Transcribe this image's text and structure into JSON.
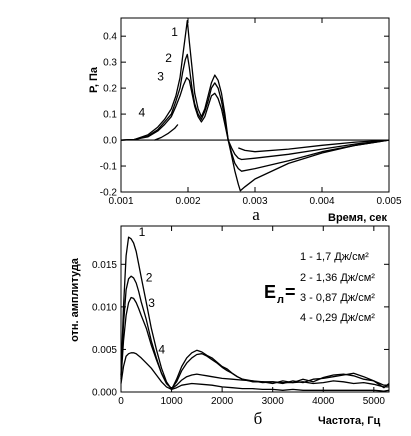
{
  "chart_data": [
    {
      "type": "line",
      "panel_label": "а",
      "xlabel": "Время, сек",
      "ylabel": "P, Па",
      "xlim": [
        0.001,
        0.005
      ],
      "ylim": [
        -0.2,
        0.47
      ],
      "xticks": [
        "0.001",
        "0.002",
        "0.003",
        "0.004",
        "0.005"
      ],
      "yticks": [
        "-0.2",
        "-0.1",
        "0.0",
        "0.1",
        "0.2",
        "0.3",
        "0.4"
      ],
      "grid": false,
      "series": [
        {
          "name": "1",
          "x": [
            0.001,
            0.0012,
            0.0014,
            0.00155,
            0.00165,
            0.00175,
            0.00182,
            0.00188,
            0.00192,
            0.00196,
            0.00199,
            0.00202,
            0.00206,
            0.0021,
            0.00215,
            0.0022,
            0.00225,
            0.0023,
            0.00235,
            0.0024,
            0.00245,
            0.0025,
            0.00255,
            0.0026,
            0.00265,
            0.0027,
            0.00275,
            0.00278,
            0.00285,
            0.003,
            0.0035,
            0.004,
            0.0045,
            0.005
          ],
          "y": [
            0.0,
            0.002,
            0.02,
            0.05,
            0.08,
            0.12,
            0.17,
            0.24,
            0.32,
            0.4,
            0.46,
            0.38,
            0.28,
            0.18,
            0.12,
            0.09,
            0.12,
            0.17,
            0.22,
            0.25,
            0.23,
            0.18,
            0.1,
            0.0,
            -0.06,
            -0.12,
            -0.17,
            -0.195,
            -0.18,
            -0.15,
            -0.09,
            -0.05,
            -0.02,
            0.0
          ]
        },
        {
          "name": "2",
          "x": [
            0.001,
            0.0012,
            0.0014,
            0.00155,
            0.00165,
            0.00175,
            0.00182,
            0.00188,
            0.00192,
            0.00196,
            0.00199,
            0.00202,
            0.00206,
            0.0021,
            0.00215,
            0.0022,
            0.00225,
            0.0023,
            0.00235,
            0.0024,
            0.00245,
            0.0025,
            0.00255,
            0.0026,
            0.00265,
            0.0027,
            0.00275,
            0.0028,
            0.003,
            0.0035,
            0.004,
            0.0045,
            0.005
          ],
          "y": [
            0.0,
            0.002,
            0.015,
            0.04,
            0.07,
            0.1,
            0.15,
            0.2,
            0.26,
            0.31,
            0.33,
            0.28,
            0.2,
            0.14,
            0.1,
            0.08,
            0.11,
            0.15,
            0.2,
            0.22,
            0.2,
            0.15,
            0.08,
            0.0,
            -0.05,
            -0.09,
            -0.11,
            -0.12,
            -0.11,
            -0.08,
            -0.045,
            -0.02,
            0.0
          ]
        },
        {
          "name": "3",
          "x": [
            0.001,
            0.0012,
            0.0014,
            0.00155,
            0.00165,
            0.00175,
            0.00182,
            0.00188,
            0.00193,
            0.00198,
            0.00202,
            0.00206,
            0.0021,
            0.00215,
            0.0022,
            0.00225,
            0.0023,
            0.00235,
            0.0024,
            0.00245,
            0.0025,
            0.00255,
            0.0026,
            0.00265,
            0.0027,
            0.00275,
            0.0028,
            0.003,
            0.0035,
            0.004,
            0.0045,
            0.005
          ],
          "y": [
            0.0,
            0.002,
            0.012,
            0.035,
            0.06,
            0.09,
            0.13,
            0.17,
            0.21,
            0.24,
            0.23,
            0.18,
            0.13,
            0.09,
            0.07,
            0.09,
            0.13,
            0.17,
            0.18,
            0.16,
            0.12,
            0.06,
            0.0,
            -0.03,
            -0.055,
            -0.07,
            -0.075,
            -0.07,
            -0.055,
            -0.035,
            -0.015,
            0.0
          ]
        },
        {
          "name": "4",
          "x": [
            0.0015,
            0.0016,
            0.0017,
            0.0018,
            0.00185
          ],
          "y": [
            0.0,
            0.01,
            0.025,
            0.045,
            0.06
          ]
        },
        {
          "name": "",
          "x": [
            0.00275,
            0.00285,
            0.003,
            0.0035,
            0.004,
            0.0045,
            0.005
          ],
          "y": [
            -0.03,
            -0.04,
            -0.045,
            -0.035,
            -0.02,
            -0.008,
            0.0
          ]
        }
      ]
    },
    {
      "type": "line",
      "panel_label": "б",
      "xlabel": "Частота, Гц",
      "ylabel": "отн. амплитуда",
      "xlim": [
        0,
        5300
      ],
      "ylim": [
        0,
        0.0195
      ],
      "xticks": [
        "0",
        "1000",
        "2000",
        "3000",
        "4000",
        "5000"
      ],
      "yticks": [
        "0.000",
        "0.005",
        "0.010",
        "0.015"
      ],
      "grid": false,
      "legend": {
        "symbol_main": "Е",
        "symbol_sub": "л",
        "symbol_eq": "=",
        "entries": [
          "1 - 1,7 Дж/см²",
          "2 - 1,36 Дж/см²",
          "3 - 0,87 Дж/см²",
          "4 - 0,29 Дж/см²"
        ]
      },
      "series": [
        {
          "name": "1",
          "x": [
            0,
            50,
            100,
            150,
            200,
            250,
            300,
            350,
            400,
            500,
            600,
            700,
            800,
            900,
            1000,
            1100,
            1200,
            1300,
            1400,
            1500,
            1600,
            1700,
            1800,
            1900,
            2000,
            2100,
            2200,
            2300,
            2400,
            2600,
            2800,
            3000,
            3200,
            3400,
            3600,
            3800,
            4000,
            4200,
            4400,
            4600,
            4800,
            5000,
            5200,
            5300
          ],
          "y": [
            0.002,
            0.01,
            0.016,
            0.0182,
            0.018,
            0.0175,
            0.0165,
            0.015,
            0.0135,
            0.0105,
            0.0075,
            0.005,
            0.0028,
            0.0012,
            0.0003,
            0.0015,
            0.003,
            0.004,
            0.0046,
            0.0049,
            0.0047,
            0.0043,
            0.004,
            0.0035,
            0.003,
            0.0027,
            0.0022,
            0.0018,
            0.0015,
            0.0012,
            0.0012,
            0.001,
            0.0013,
            0.0011,
            0.0015,
            0.0012,
            0.0017,
            0.002,
            0.0021,
            0.0019,
            0.0015,
            0.0013,
            0.0005,
            0.001
          ]
        },
        {
          "name": "2",
          "x": [
            0,
            50,
            100,
            150,
            200,
            250,
            300,
            350,
            400,
            500,
            600,
            700,
            800,
            900,
            1000,
            1100,
            1200,
            1300,
            1400,
            1500,
            1600,
            1700,
            1800,
            1900,
            2000,
            2100,
            2200,
            2300,
            2400,
            2600,
            2800,
            3000,
            3200,
            3400,
            3600,
            3800,
            4000,
            4200,
            4400,
            4600,
            4800,
            5000,
            5200,
            5300
          ],
          "y": [
            0.0018,
            0.008,
            0.012,
            0.0133,
            0.0136,
            0.0134,
            0.0128,
            0.0118,
            0.0106,
            0.0085,
            0.006,
            0.004,
            0.0022,
            0.001,
            0.0004,
            0.0012,
            0.0025,
            0.0034,
            0.004,
            0.0044,
            0.0045,
            0.0042,
            0.0038,
            0.0034,
            0.0029,
            0.0025,
            0.0022,
            0.0018,
            0.0015,
            0.0013,
            0.0011,
            0.0012,
            0.001,
            0.0013,
            0.0011,
            0.0015,
            0.0016,
            0.0018,
            0.002,
            0.0022,
            0.0018,
            0.0013,
            0.0008,
            0.0008
          ]
        },
        {
          "name": "3",
          "x": [
            0,
            50,
            100,
            150,
            200,
            250,
            300,
            350,
            400,
            500,
            600,
            700,
            800,
            900,
            1000,
            1100,
            1200,
            1300,
            1400,
            1500,
            1600,
            1700,
            1800,
            2000,
            2200,
            2400,
            2600,
            2800,
            3000,
            3200,
            3400,
            3600,
            3800,
            4000,
            4200,
            4400,
            4600,
            4800,
            5000,
            5200,
            5300
          ],
          "y": [
            0.0015,
            0.006,
            0.009,
            0.0105,
            0.0111,
            0.011,
            0.0105,
            0.0098,
            0.009,
            0.0075,
            0.0055,
            0.0038,
            0.0022,
            0.001,
            0.0004,
            0.0008,
            0.0014,
            0.0018,
            0.002,
            0.0021,
            0.002,
            0.0019,
            0.0018,
            0.0016,
            0.0015,
            0.0014,
            0.0013,
            0.0012,
            0.0012,
            0.0011,
            0.0011,
            0.0012,
            0.001,
            0.0011,
            0.0013,
            0.0012,
            0.001,
            0.0011,
            0.0009,
            0.0006,
            0.0006
          ]
        },
        {
          "name": "4",
          "x": [
            0,
            50,
            100,
            150,
            200,
            250,
            300,
            400,
            500,
            600,
            700,
            800,
            900,
            1000,
            1100,
            1200,
            1400,
            1600,
            1800,
            2000,
            2200,
            2400,
            2600,
            2800,
            3000,
            3200,
            3400,
            3600,
            3800,
            4000,
            4200,
            4400,
            4600,
            4800,
            5000,
            5200,
            5300
          ],
          "y": [
            0.001,
            0.003,
            0.0042,
            0.0045,
            0.0046,
            0.0046,
            0.0045,
            0.004,
            0.0034,
            0.0028,
            0.002,
            0.0012,
            0.0006,
            0.0003,
            0.0005,
            0.0008,
            0.001,
            0.0009,
            0.0008,
            0.0006,
            0.0005,
            0.0004,
            0.0004,
            0.0003,
            0.0003,
            0.0002,
            0.0003,
            0.0002,
            0.0002,
            0.0002,
            0.0002,
            0.0002,
            0.0002,
            0.0002,
            0.0002,
            0.0001,
            0.0002
          ]
        }
      ],
      "curve_labels": [
        "1",
        "2",
        "3",
        "4"
      ]
    }
  ]
}
